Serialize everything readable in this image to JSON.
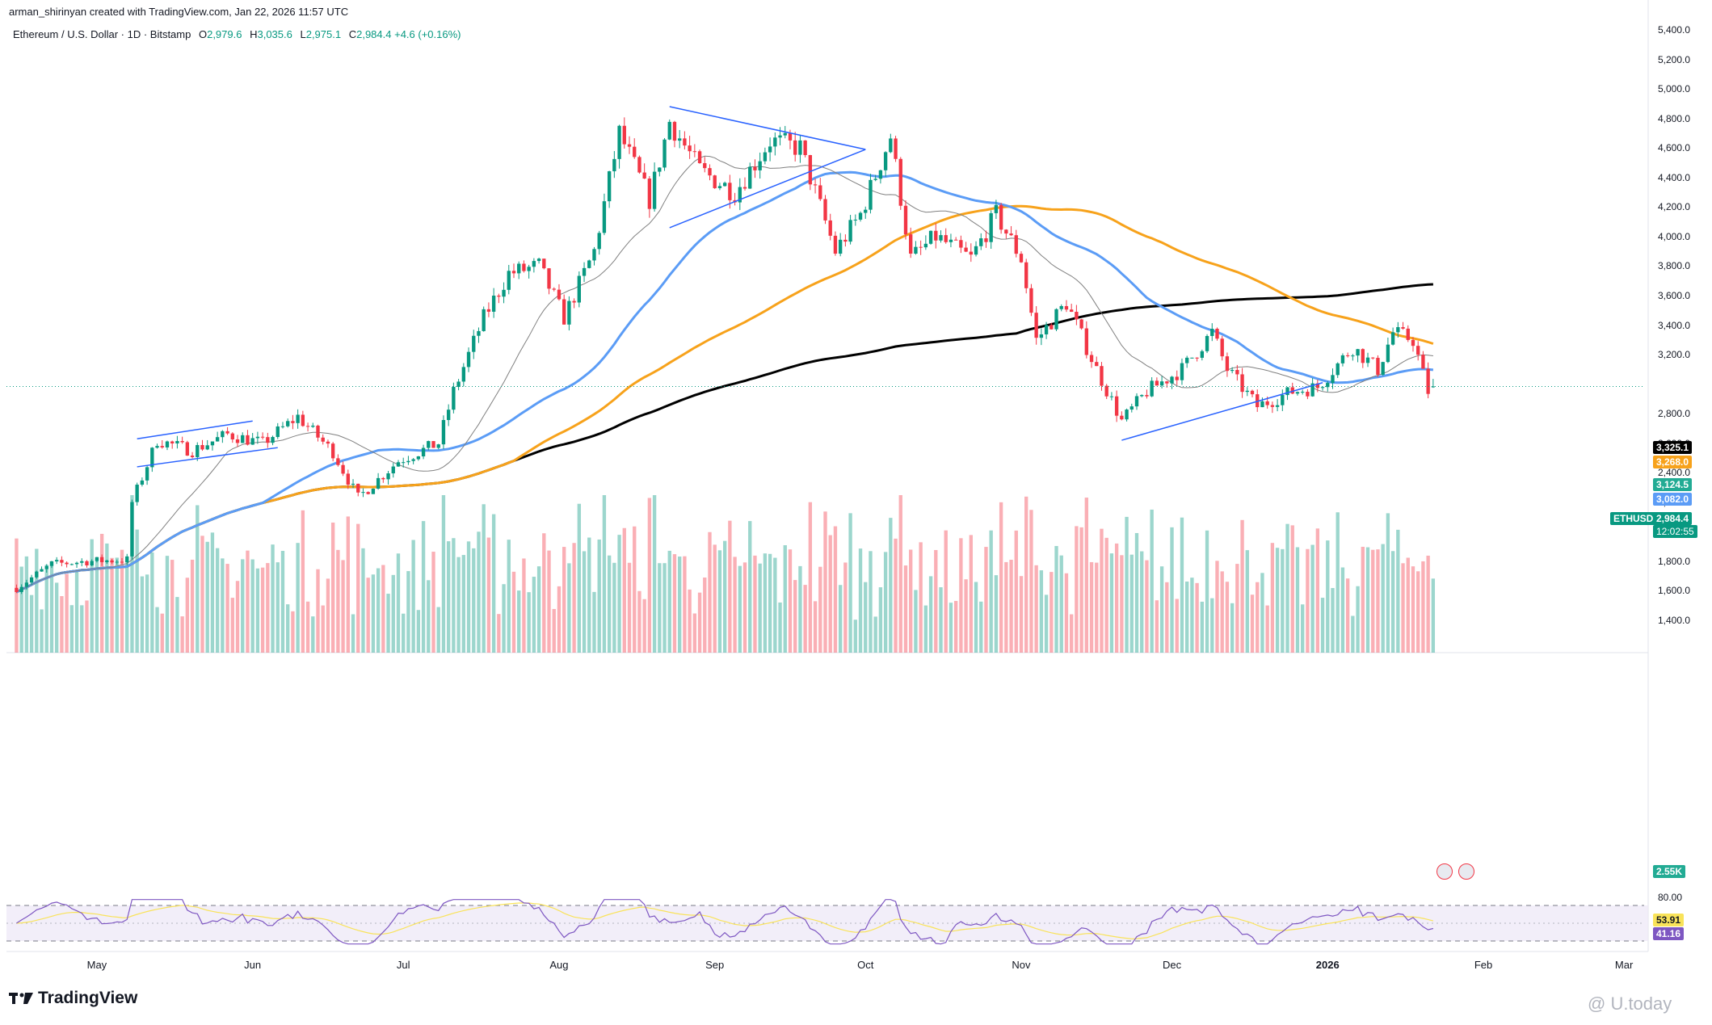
{
  "header": {
    "created_line": "arman_shirinyan created with TradingView.com, Jan 22, 2026 11:57 UTC"
  },
  "legend": {
    "symbol": "Ethereum / U.S. Dollar · 1D · Bitstamp",
    "open_label": "O",
    "open": "2,979.6",
    "high_label": "H",
    "high": "3,035.6",
    "low_label": "L",
    "low": "2,975.1",
    "close_label": "C",
    "close": "2,984.4",
    "change": "+4.6 (+0.16%)"
  },
  "price_axis": {
    "ticks": [
      "5,400.0",
      "5,200.0",
      "5,000.0",
      "4,800.0",
      "4,600.0",
      "4,400.0",
      "4,200.0",
      "4,000.0",
      "3,800.0",
      "3,600.0",
      "3,400.0",
      "3,200.0",
      "2,800.0",
      "2,600.0",
      "2,400.0",
      "2,200.0",
      "2,000.0",
      "1,800.0",
      "1,600.0",
      "1,400.0"
    ],
    "badges": {
      "ma200": "3,325.1",
      "ma100": "3,268.0",
      "ma20": "3,124.5",
      "ma50": "3,082.0",
      "symbol": "ETHUSD",
      "last": "2,984.4",
      "countdown": "12:02:55",
      "volume": "2.55K"
    }
  },
  "rsi_axis": {
    "top_tick": "80.00",
    "ma_value": "53.91",
    "rsi_value": "41.16"
  },
  "time_axis": {
    "labels": [
      "May",
      "Jun",
      "Jul",
      "Aug",
      "Sep",
      "Oct",
      "Nov",
      "Dec",
      "2026",
      "Feb",
      "Mar"
    ]
  },
  "footer": {
    "brand": "TradingView",
    "watermark": "@ U.today"
  },
  "colors": {
    "up": "#089981",
    "down": "#f23645",
    "ma200": "#000000",
    "ma100": "#f7a21b",
    "ma50": "#5b9cf6",
    "ma20": "#131722",
    "trendline": "#2962ff",
    "rsi": "#7e57c2"
  },
  "chart_data": {
    "type": "candlestick",
    "symbol": "ETHUSD",
    "timeframe": "1D",
    "ylim": [
      1300,
      5450
    ],
    "x_range": [
      "2025-04-13",
      "2026-03-05"
    ],
    "close_path": [
      [
        "2025-04-15",
        1620
      ],
      [
        "2025-04-22",
        1780
      ],
      [
        "2025-04-29",
        1800
      ],
      [
        "2025-05-07",
        1810
      ],
      [
        "2025-05-08",
        2200
      ],
      [
        "2025-05-13",
        2620
      ],
      [
        "2025-05-20",
        2550
      ],
      [
        "2025-05-27",
        2660
      ],
      [
        "2025-06-03",
        2600
      ],
      [
        "2025-06-10",
        2780
      ],
      [
        "2025-06-17",
        2540
      ],
      [
        "2025-06-22",
        2230
      ],
      [
        "2025-06-30",
        2480
      ],
      [
        "2025-07-08",
        2600
      ],
      [
        "2025-07-11",
        2950
      ],
      [
        "2025-07-17",
        3450
      ],
      [
        "2025-07-22",
        3750
      ],
      [
        "2025-07-28",
        3800
      ],
      [
        "2025-08-02",
        3450
      ],
      [
        "2025-08-08",
        3900
      ],
      [
        "2025-08-13",
        4700
      ],
      [
        "2025-08-19",
        4250
      ],
      [
        "2025-08-23",
        4780
      ],
      [
        "2025-08-29",
        4450
      ],
      [
        "2025-09-05",
        4300
      ],
      [
        "2025-09-12",
        4650
      ],
      [
        "2025-09-18",
        4600
      ],
      [
        "2025-09-25",
        3900
      ],
      [
        "2025-09-30",
        4150
      ],
      [
        "2025-10-06",
        4680
      ],
      [
        "2025-10-10",
        3850
      ],
      [
        "2025-10-15",
        4000
      ],
      [
        "2025-10-22",
        3850
      ],
      [
        "2025-10-27",
        4150
      ],
      [
        "2025-11-01",
        3850
      ],
      [
        "2025-11-04",
        3300
      ],
      [
        "2025-11-10",
        3550
      ],
      [
        "2025-11-16",
        3100
      ],
      [
        "2025-11-21",
        2750
      ],
      [
        "2025-11-26",
        2950
      ],
      [
        "2025-12-03",
        3100
      ],
      [
        "2025-12-09",
        3350
      ],
      [
        "2025-12-12",
        3100
      ],
      [
        "2025-12-18",
        2850
      ],
      [
        "2025-12-25",
        2950
      ],
      [
        "2025-12-30",
        2980
      ],
      [
        "2026-01-06",
        3250
      ],
      [
        "2026-01-11",
        3100
      ],
      [
        "2026-01-14",
        3350
      ],
      [
        "2026-01-18",
        3300
      ],
      [
        "2026-01-21",
        2950
      ],
      [
        "2026-01-22",
        2984.4
      ]
    ],
    "moving_averages": [
      {
        "name": "MA200",
        "last": 3325.1,
        "color": "#000000"
      },
      {
        "name": "MA100",
        "last": 3268.0,
        "color": "#f7a21b"
      },
      {
        "name": "MA50",
        "last": 3082.0,
        "color": "#5b9cf6"
      },
      {
        "name": "MA20",
        "last": 3124.5,
        "color": "#131722"
      }
    ],
    "last_price": 2984.4,
    "volume_last": "2.55K",
    "rsi": {
      "value": 41.16,
      "ma": 53.91,
      "overbought": 80
    },
    "x_labels": [
      "May",
      "Jun",
      "Jul",
      "Aug",
      "Sep",
      "Oct",
      "Nov",
      "Dec",
      "2026",
      "Feb",
      "Mar"
    ]
  }
}
